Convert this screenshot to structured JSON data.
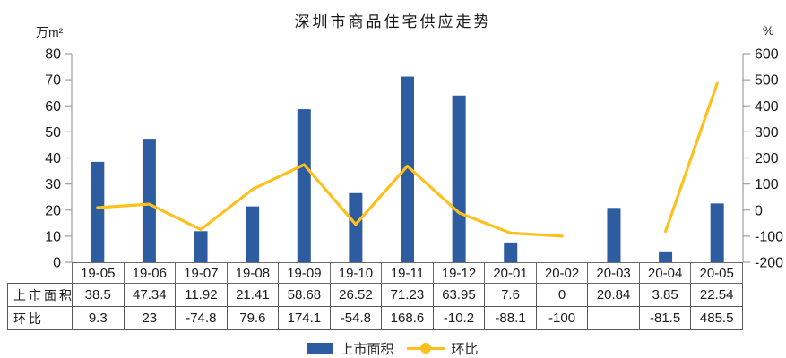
{
  "chart_data": {
    "type": "bar",
    "combo": "bar+line",
    "title": "深圳市商品住宅供应走势",
    "categories": [
      "19-05",
      "19-06",
      "19-07",
      "19-08",
      "19-09",
      "19-10",
      "19-11",
      "19-12",
      "20-01",
      "20-02",
      "20-03",
      "20-04",
      "20-05"
    ],
    "series": [
      {
        "name": "上市面积",
        "type": "bar",
        "axis": "left",
        "color": "#2E5CA0",
        "values": [
          38.5,
          47.34,
          11.92,
          21.41,
          58.68,
          26.52,
          71.23,
          63.95,
          7.6,
          0,
          20.84,
          3.85,
          22.54
        ]
      },
      {
        "name": "环比",
        "type": "line",
        "axis": "right",
        "color": "#FFC01E",
        "values": [
          9.3,
          23,
          -74.8,
          79.6,
          174.1,
          -54.8,
          168.6,
          -10.2,
          -88.1,
          -100,
          null,
          -81.5,
          485.5
        ]
      }
    ],
    "left_axis": {
      "unit": "万m²",
      "range": [
        0,
        80
      ],
      "ticks": [
        80,
        70,
        60,
        50,
        40,
        30,
        20,
        10,
        0
      ]
    },
    "right_axis": {
      "unit": "%",
      "range": [
        -200,
        600
      ],
      "ticks": [
        600,
        500,
        400,
        300,
        200,
        100,
        0,
        -100,
        -200
      ]
    },
    "grid": false,
    "legend_position": "bottom",
    "table_shown": true
  },
  "colors": {
    "bar": "#2E5CA0",
    "line": "#FFC01E",
    "axis": "#A6A6A6",
    "table_border": "#595959",
    "text": "#1A1A1A"
  }
}
